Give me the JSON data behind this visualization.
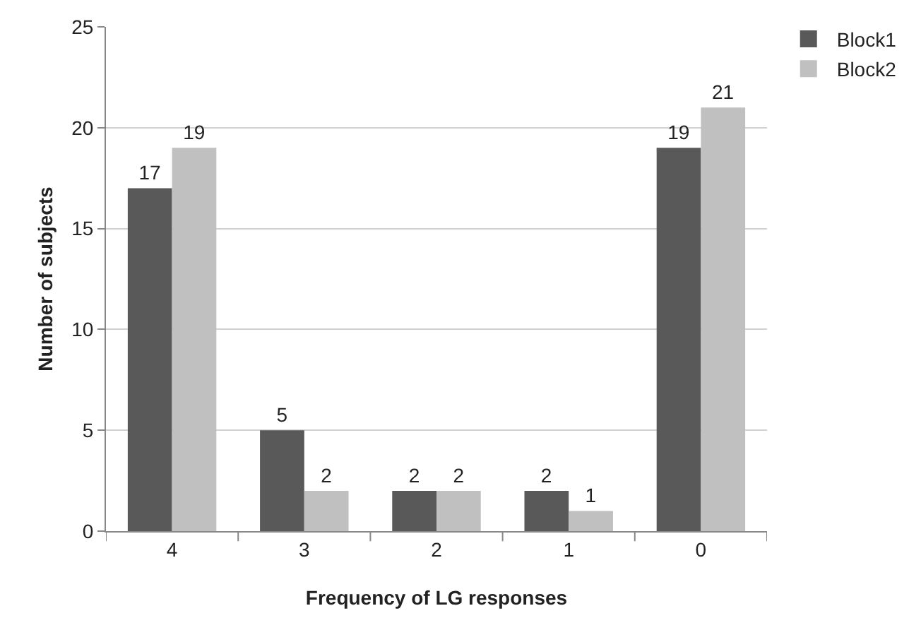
{
  "chart_data": {
    "type": "bar",
    "xlabel": "Frequency of LG responses",
    "ylabel": "Number of subjects",
    "categories": [
      "4",
      "3",
      "2",
      "1",
      "0"
    ],
    "series": [
      {
        "name": "Block1",
        "color": "#595959",
        "values": [
          17,
          5,
          2,
          2,
          19
        ]
      },
      {
        "name": "Block2",
        "color": "#c0c0c0",
        "values": [
          19,
          2,
          2,
          1,
          21
        ]
      }
    ],
    "ylim": [
      0,
      25
    ],
    "yticks": [
      0,
      5,
      10,
      15,
      20,
      25
    ],
    "grid": "y",
    "legend": "top right",
    "data_labels": true
  }
}
